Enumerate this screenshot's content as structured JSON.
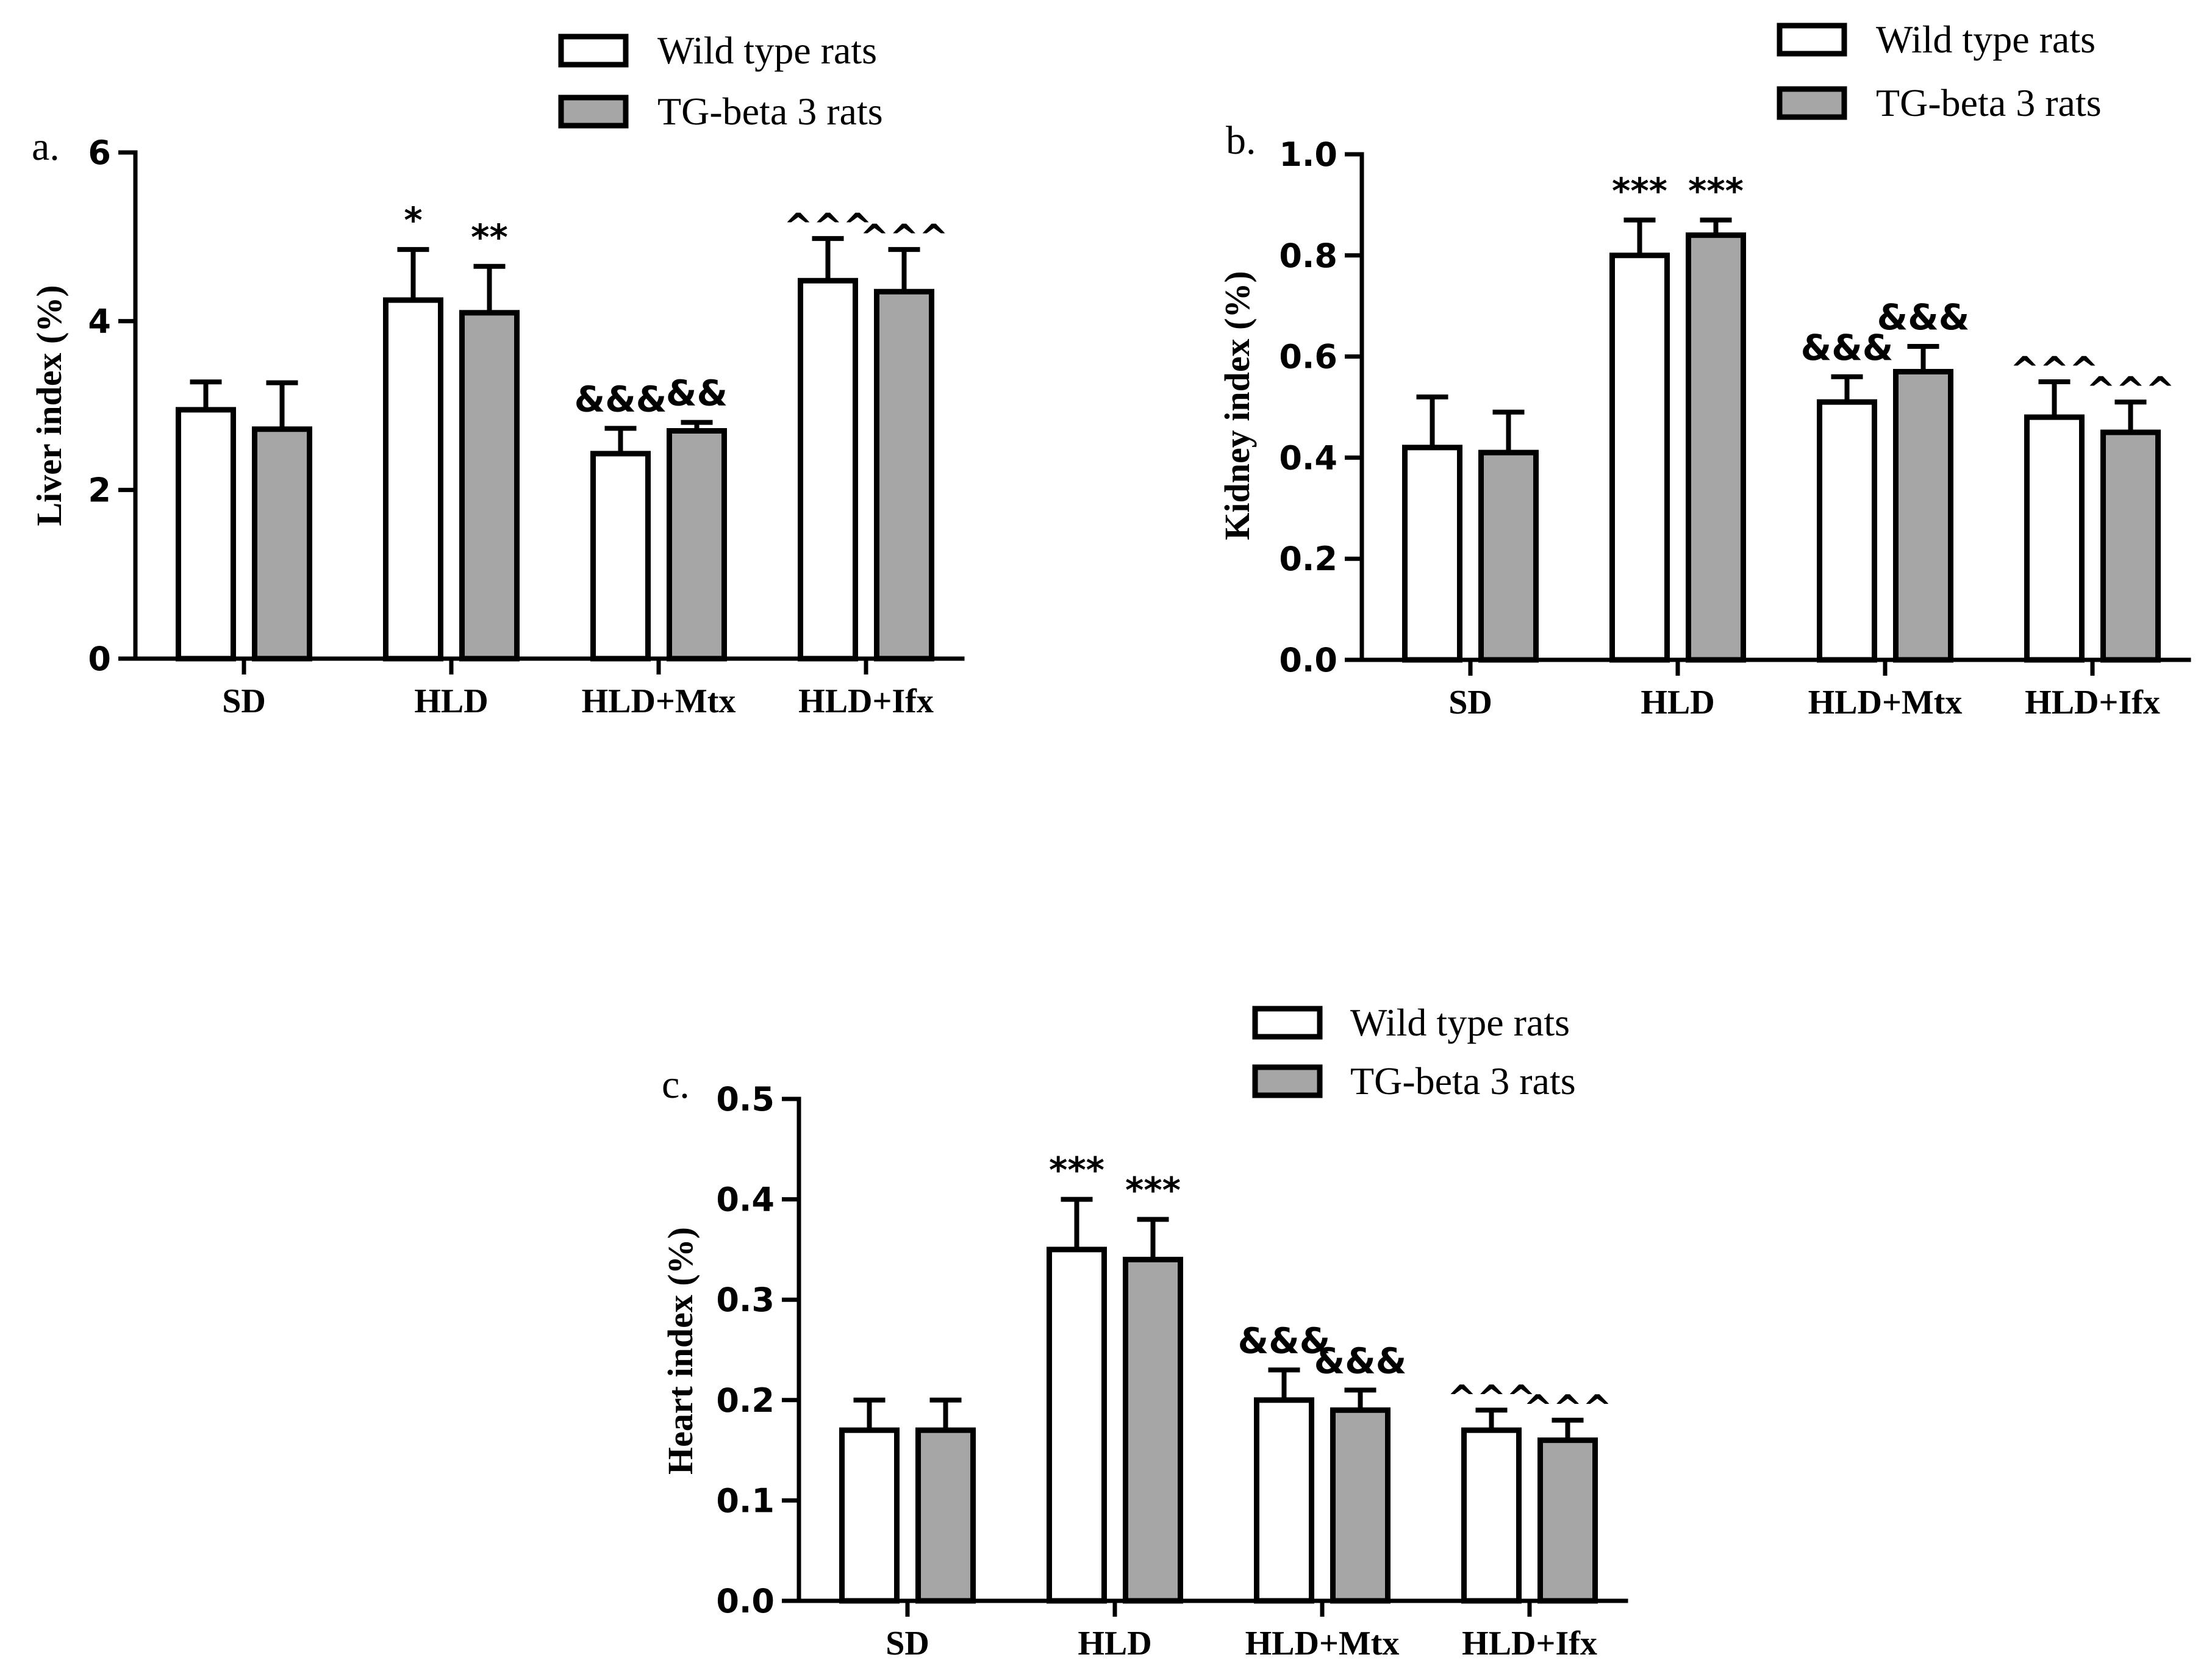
{
  "figure": {
    "colors": {
      "wild": "#ffffff",
      "tg": "#a6a6a6",
      "ink": "#000000"
    },
    "legend": {
      "wild_label": "Wild type rats",
      "tg_label": "TG-beta 3 rats"
    }
  },
  "chart_data": [
    {
      "type": "bar",
      "panel": "a.",
      "ylabel": "Liver index (%)",
      "xlabel": "",
      "ylim": [
        0,
        6
      ],
      "yticks": [
        0,
        2,
        4,
        6
      ],
      "ytick_labels": [
        "0",
        "2",
        "4",
        "6"
      ],
      "categories": [
        "SD",
        "HLD",
        "HLD+Mtx",
        "HLD+Ifx"
      ],
      "series": [
        {
          "name": "Wild type rats",
          "values": [
            2.95,
            4.25,
            2.43,
            4.48
          ],
          "errors": [
            0.33,
            0.6,
            0.3,
            0.5
          ]
        },
        {
          "name": "TG-beta 3 rats",
          "values": [
            2.72,
            4.1,
            2.7,
            4.35
          ],
          "errors": [
            0.55,
            0.55,
            0.1,
            0.5
          ]
        }
      ],
      "annotations": [
        [
          "",
          "*",
          "&&&",
          "^^^"
        ],
        [
          "",
          "**",
          "&&",
          "^^^"
        ]
      ],
      "legend_position": "top-right"
    },
    {
      "type": "bar",
      "panel": "b.",
      "ylabel": "Kidney index (%)",
      "xlabel": "",
      "ylim": [
        0,
        1.0
      ],
      "yticks": [
        0,
        0.2,
        0.4,
        0.6,
        0.8,
        1.0
      ],
      "ytick_labels": [
        "0.0",
        "0.2",
        "0.4",
        "0.6",
        "0.8",
        "1.0"
      ],
      "categories": [
        "SD",
        "HLD",
        "HLD+Mtx",
        "HLD+Ifx"
      ],
      "series": [
        {
          "name": "Wild type rats",
          "values": [
            0.42,
            0.8,
            0.51,
            0.48
          ],
          "errors": [
            0.1,
            0.07,
            0.05,
            0.07
          ]
        },
        {
          "name": "TG-beta 3 rats",
          "values": [
            0.41,
            0.84,
            0.57,
            0.45
          ],
          "errors": [
            0.08,
            0.03,
            0.05,
            0.06
          ]
        }
      ],
      "annotations": [
        [
          "",
          "***",
          "&&&",
          "^^^"
        ],
        [
          "",
          "***",
          "&&&",
          "^^^"
        ]
      ],
      "legend_position": "top-right"
    },
    {
      "type": "bar",
      "panel": "c.",
      "ylabel": "Heart index (%)",
      "xlabel": "",
      "ylim": [
        0,
        0.5
      ],
      "yticks": [
        0,
        0.1,
        0.2,
        0.3,
        0.4,
        0.5
      ],
      "ytick_labels": [
        "0.0",
        "0.1",
        "0.2",
        "0.3",
        "0.4",
        "0.5"
      ],
      "categories": [
        "SD",
        "HLD",
        "HLD+Mtx",
        "HLD+Ifx"
      ],
      "series": [
        {
          "name": "Wild type rats",
          "values": [
            0.17,
            0.35,
            0.2,
            0.17
          ],
          "errors": [
            0.03,
            0.05,
            0.03,
            0.02
          ]
        },
        {
          "name": "TG-beta 3 rats",
          "values": [
            0.17,
            0.34,
            0.19,
            0.16
          ],
          "errors": [
            0.03,
            0.04,
            0.02,
            0.02
          ]
        }
      ],
      "annotations": [
        [
          "",
          "***",
          "&&&",
          "^^^"
        ],
        [
          "",
          "***",
          "&&&",
          "^^^"
        ]
      ],
      "legend_position": "top-right"
    }
  ]
}
